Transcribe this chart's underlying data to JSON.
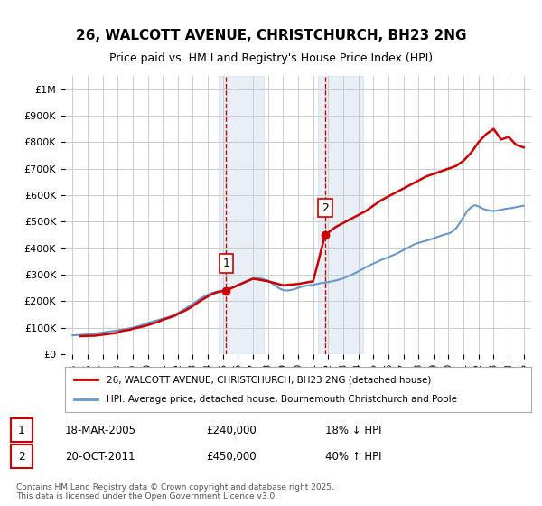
{
  "title": "26, WALCOTT AVENUE, CHRISTCHURCH, BH23 2NG",
  "subtitle": "Price paid vs. HM Land Registry's House Price Index (HPI)",
  "legend_line1": "26, WALCOTT AVENUE, CHRISTCHURCH, BH23 2NG (detached house)",
  "legend_line2": "HPI: Average price, detached house, Bournemouth Christchurch and Poole",
  "footer": "Contains HM Land Registry data © Crown copyright and database right 2025.\nThis data is licensed under the Open Government Licence v3.0.",
  "transaction1_label": "1",
  "transaction1_date": "18-MAR-2005",
  "transaction1_price": "£240,000",
  "transaction1_hpi": "18% ↓ HPI",
  "transaction2_label": "2",
  "transaction2_date": "20-OCT-2011",
  "transaction2_price": "£450,000",
  "transaction2_hpi": "40% ↑ HPI",
  "price_color": "#cc0000",
  "hpi_color": "#6699cc",
  "background_color": "#ffffff",
  "grid_color": "#cccccc",
  "highlight_color": "#ddeeff",
  "transaction1_x": 2005.21,
  "transaction2_x": 2011.8,
  "ylim_min": 0,
  "ylim_max": 1050000,
  "xlim_min": 1994.5,
  "xlim_max": 2025.5,
  "yticks": [
    0,
    100000,
    200000,
    300000,
    400000,
    500000,
    600000,
    700000,
    800000,
    900000,
    1000000
  ],
  "ytick_labels": [
    "£0",
    "£100K",
    "£200K",
    "£300K",
    "£400K",
    "£500K",
    "£600K",
    "£700K",
    "£800K",
    "£900K",
    "£1M"
  ],
  "xticks": [
    1995,
    1996,
    1997,
    1998,
    1999,
    2000,
    2001,
    2002,
    2003,
    2004,
    2005,
    2006,
    2007,
    2008,
    2009,
    2010,
    2011,
    2012,
    2013,
    2014,
    2015,
    2016,
    2017,
    2018,
    2019,
    2020,
    2021,
    2022,
    2023,
    2024,
    2025
  ],
  "hpi_x": [
    1995.0,
    1995.25,
    1995.5,
    1995.75,
    1996.0,
    1996.25,
    1996.5,
    1996.75,
    1997.0,
    1997.25,
    1997.5,
    1997.75,
    1998.0,
    1998.25,
    1998.5,
    1998.75,
    1999.0,
    1999.25,
    1999.5,
    1999.75,
    2000.0,
    2000.25,
    2000.5,
    2000.75,
    2001.0,
    2001.25,
    2001.5,
    2001.75,
    2002.0,
    2002.25,
    2002.5,
    2002.75,
    2003.0,
    2003.25,
    2003.5,
    2003.75,
    2004.0,
    2004.25,
    2004.5,
    2004.75,
    2005.0,
    2005.25,
    2005.5,
    2005.75,
    2006.0,
    2006.25,
    2006.5,
    2006.75,
    2007.0,
    2007.25,
    2007.5,
    2007.75,
    2008.0,
    2008.25,
    2008.5,
    2008.75,
    2009.0,
    2009.25,
    2009.5,
    2009.75,
    2010.0,
    2010.25,
    2010.5,
    2010.75,
    2011.0,
    2011.25,
    2011.5,
    2011.75,
    2012.0,
    2012.25,
    2012.5,
    2012.75,
    2013.0,
    2013.25,
    2013.5,
    2013.75,
    2014.0,
    2014.25,
    2014.5,
    2014.75,
    2015.0,
    2015.25,
    2015.5,
    2015.75,
    2016.0,
    2016.25,
    2016.5,
    2016.75,
    2017.0,
    2017.25,
    2017.5,
    2017.75,
    2018.0,
    2018.25,
    2018.5,
    2018.75,
    2019.0,
    2019.25,
    2019.5,
    2019.75,
    2020.0,
    2020.25,
    2020.5,
    2020.75,
    2021.0,
    2021.25,
    2021.5,
    2021.75,
    2022.0,
    2022.25,
    2022.5,
    2022.75,
    2023.0,
    2023.25,
    2023.5,
    2023.75,
    2024.0,
    2024.25,
    2024.5,
    2024.75,
    2025.0
  ],
  "hpi_y": [
    71000,
    72000,
    73000,
    74000,
    75000,
    76500,
    78000,
    80000,
    82000,
    84000,
    86000,
    88000,
    90000,
    92500,
    95000,
    97000,
    100000,
    104000,
    108000,
    113000,
    118000,
    122000,
    126000,
    130000,
    134000,
    138000,
    143000,
    148000,
    155000,
    163000,
    172000,
    181000,
    190000,
    200000,
    210000,
    218000,
    225000,
    230000,
    235000,
    238000,
    240000,
    245000,
    250000,
    255000,
    262000,
    268000,
    275000,
    280000,
    285000,
    287000,
    286000,
    282000,
    278000,
    268000,
    258000,
    248000,
    242000,
    240000,
    242000,
    245000,
    250000,
    255000,
    258000,
    260000,
    262000,
    265000,
    268000,
    270000,
    272000,
    275000,
    278000,
    282000,
    286000,
    292000,
    298000,
    305000,
    312000,
    320000,
    328000,
    335000,
    342000,
    348000,
    355000,
    360000,
    366000,
    372000,
    378000,
    385000,
    393000,
    400000,
    408000,
    415000,
    420000,
    424000,
    428000,
    432000,
    437000,
    442000,
    447000,
    452000,
    455000,
    462000,
    475000,
    495000,
    518000,
    540000,
    555000,
    562000,
    558000,
    550000,
    545000,
    542000,
    540000,
    542000,
    545000,
    548000,
    550000,
    552000,
    555000,
    558000,
    560000
  ],
  "price_x": [
    1995.5,
    1996.5,
    1997.2,
    1997.9,
    1998.3,
    1998.8,
    1999.0,
    1999.5,
    1999.9,
    2000.3,
    2000.7,
    2001.0,
    2001.4,
    2001.8,
    2002.1,
    2002.5,
    2002.9,
    2003.2,
    2003.6,
    2004.0,
    2004.3,
    2004.7,
    2005.21,
    2006.0,
    2007.0,
    2008.0,
    2009.0,
    2010.0,
    2011.0,
    2011.8,
    2012.5,
    2013.5,
    2014.5,
    2015.5,
    2016.5,
    2017.5,
    2018.5,
    2019.5,
    2020.5,
    2021.0,
    2021.5,
    2022.0,
    2022.5,
    2023.0,
    2023.5,
    2024.0,
    2024.5,
    2025.0
  ],
  "price_y": [
    68000,
    70000,
    75000,
    80000,
    88000,
    92000,
    96000,
    102000,
    108000,
    115000,
    122000,
    130000,
    137000,
    145000,
    155000,
    165000,
    178000,
    190000,
    205000,
    218000,
    228000,
    235000,
    240000,
    260000,
    285000,
    275000,
    260000,
    265000,
    275000,
    450000,
    480000,
    510000,
    540000,
    580000,
    610000,
    640000,
    670000,
    690000,
    710000,
    730000,
    760000,
    800000,
    830000,
    850000,
    810000,
    820000,
    790000,
    780000
  ]
}
